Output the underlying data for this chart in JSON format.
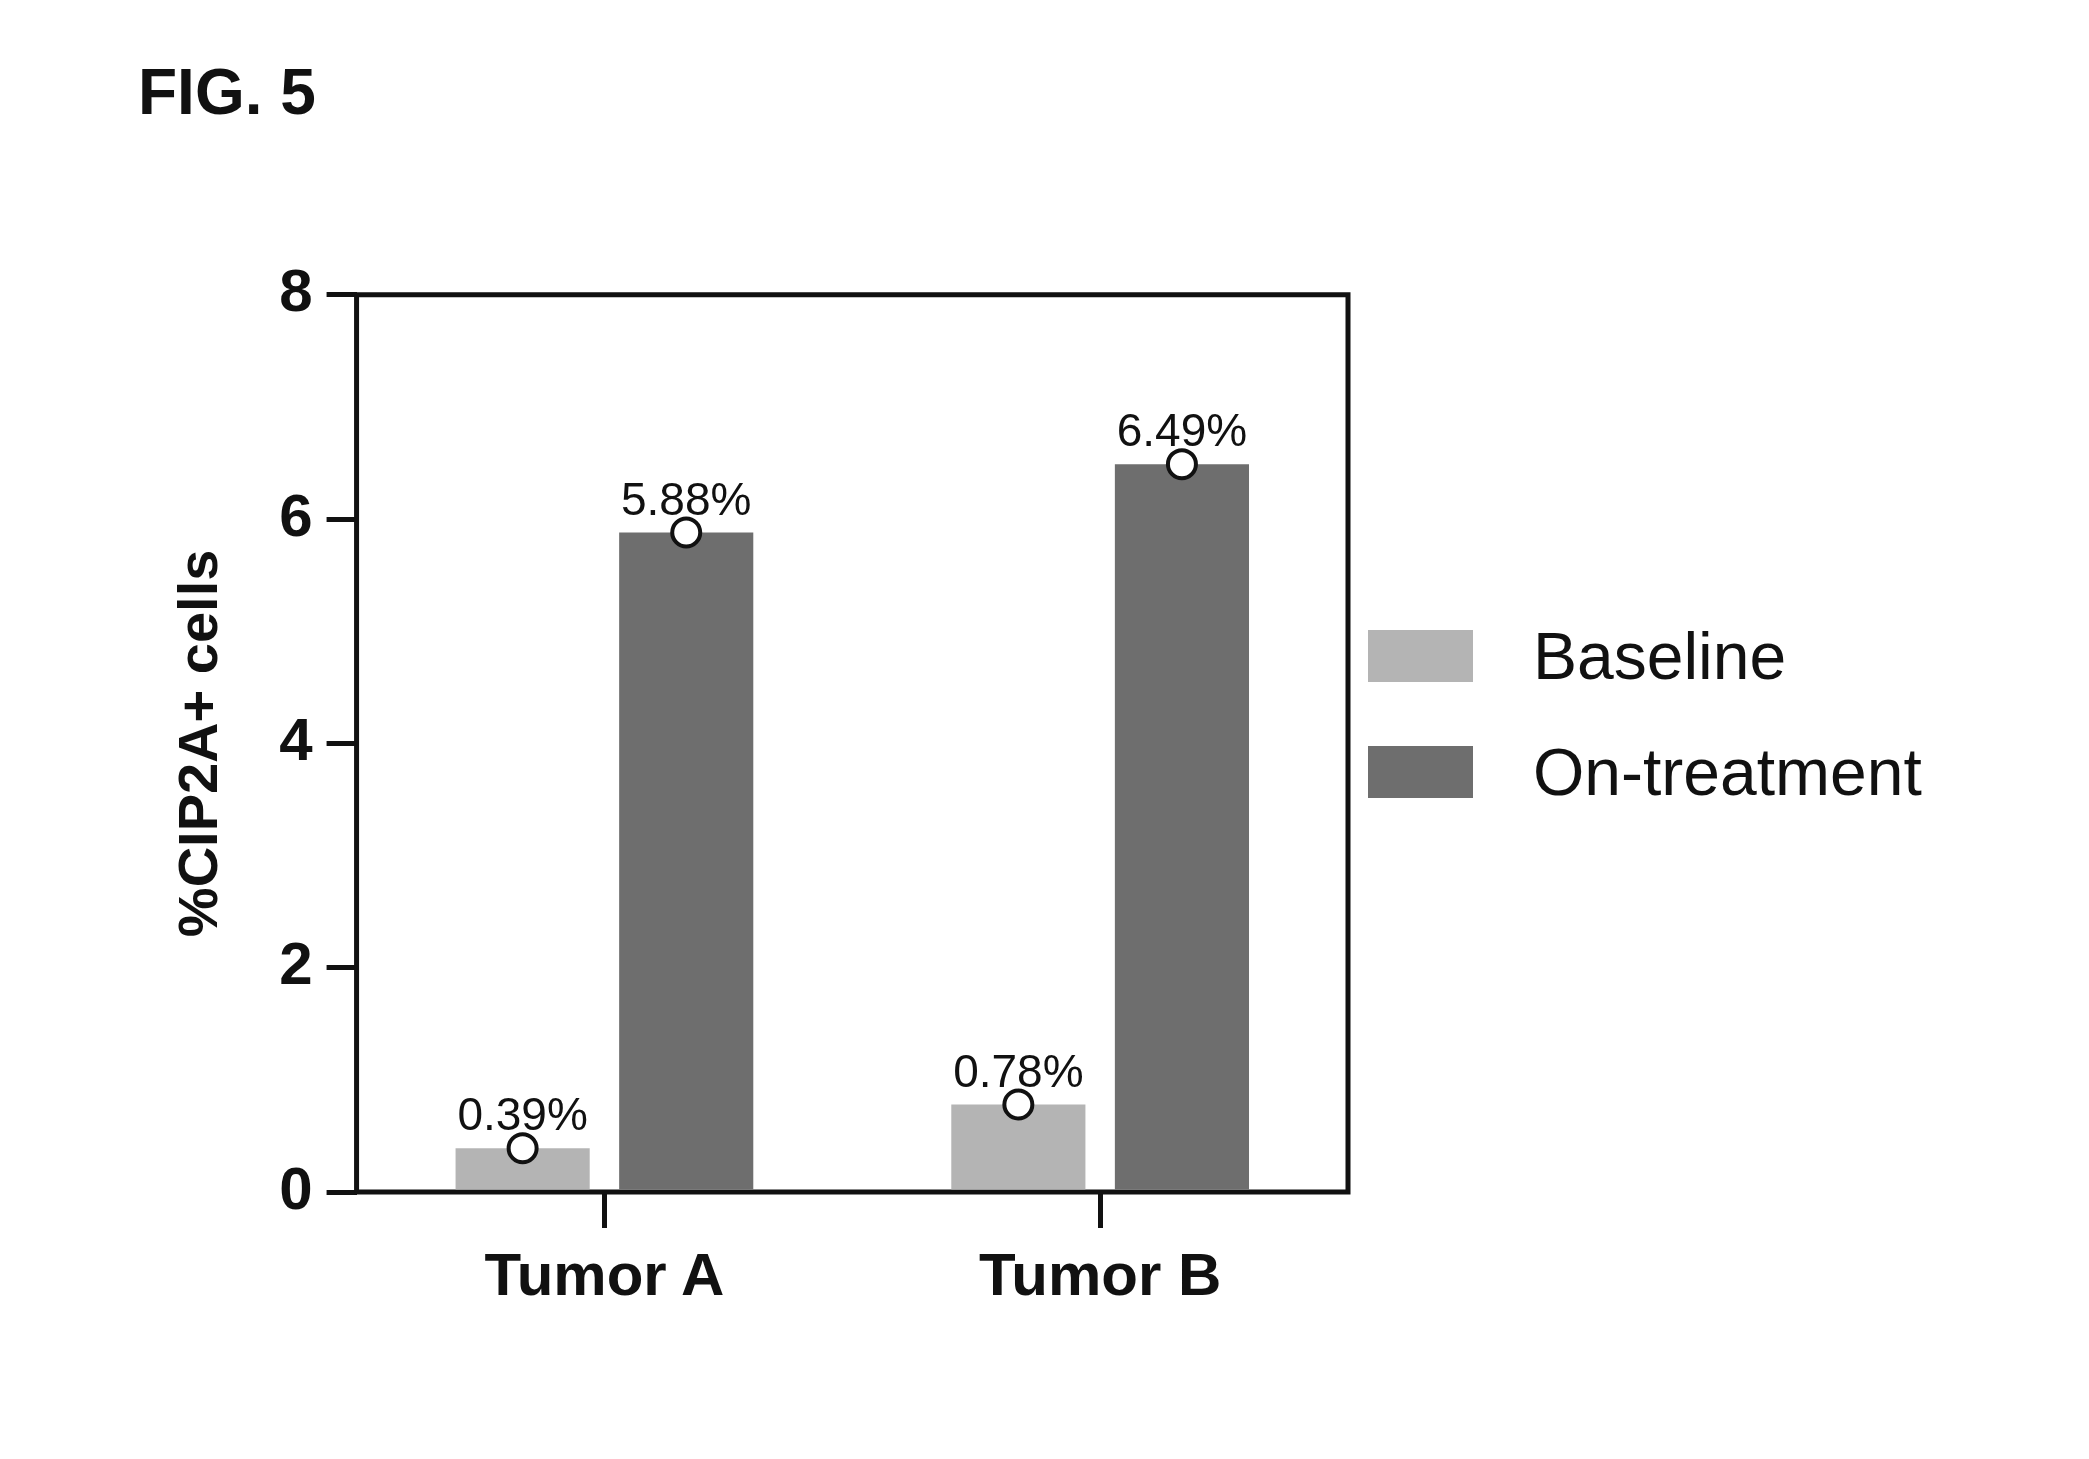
{
  "chart_data": {
    "type": "bar",
    "title": "FIG. 5",
    "ylabel": "%CIP2A+ cells",
    "categories": [
      "Tumor A",
      "Tumor B"
    ],
    "series": [
      {
        "name": "Baseline",
        "color": "#b4b4b4",
        "values": [
          0.39,
          0.78
        ],
        "value_labels": [
          "0.39%",
          "0.78%"
        ]
      },
      {
        "name": "On-treatment",
        "color": "#6e6e6e",
        "values": [
          5.88,
          6.49
        ],
        "value_labels": [
          "5.88%",
          "6.49%"
        ]
      },
      {
        "type": "scatter",
        "x": [
          "Tumor A",
          "Tumor B"
        ],
        "values": [
          0.39,
          0.78
        ],
        "color": "#ffffff",
        "marker": "circle"
      },
      {
        "type": "scatter",
        "x": [
          "Tumor A",
          "Tumor B"
        ],
        "values": [
          5.88,
          6.49
        ],
        "color": "#ffffff",
        "marker": "circle"
      }
    ],
    "ylim": [
      0,
      8
    ],
    "yticks": [
      0,
      2,
      4,
      6,
      8
    ],
    "grid": false,
    "legend": "right"
  }
}
